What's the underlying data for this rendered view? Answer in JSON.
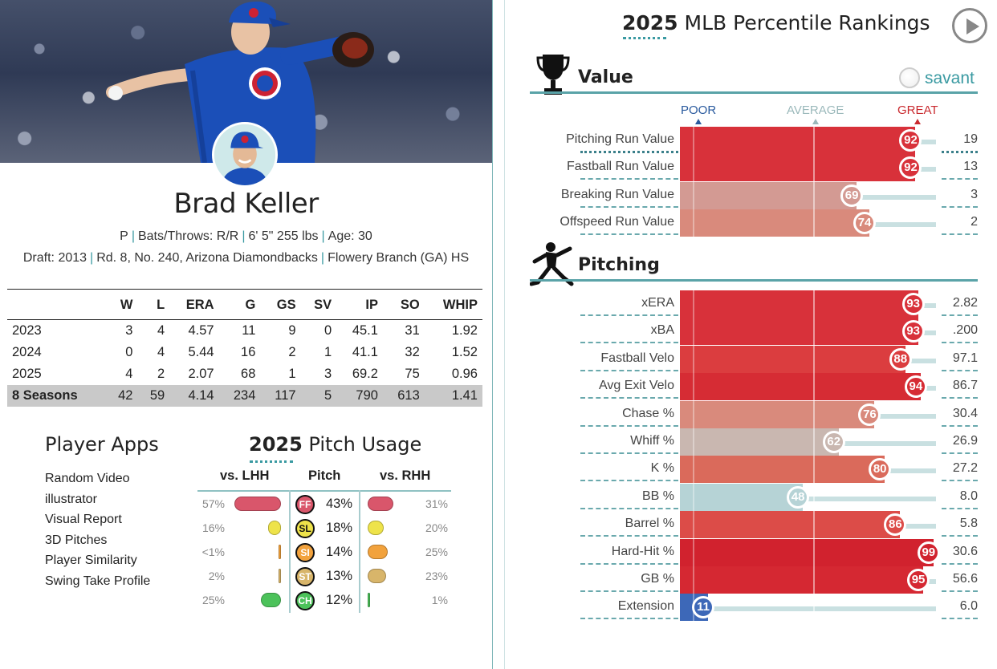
{
  "player": {
    "name": "Brad Keller",
    "bio_line1": [
      "P",
      "Bats/Throws: R/R",
      "6' 5\" 255 lbs",
      "Age: 30"
    ],
    "draft_label": "Draft:",
    "draft_year": "2013",
    "draft_pick": "Rd. 8, No. 240,",
    "draft_team": "Arizona Diamondbacks",
    "school": "Flowery Branch (GA) HS",
    "colors": {
      "cubs_blue": "#1b4fb8",
      "cubs_red": "#cc2233"
    }
  },
  "stats": {
    "headers": [
      "",
      "W",
      "L",
      "ERA",
      "G",
      "GS",
      "SV",
      "IP",
      "SO",
      "WHIP"
    ],
    "rows": [
      [
        "2023",
        "3",
        "4",
        "4.57",
        "11",
        "9",
        "0",
        "45.1",
        "31",
        "1.92"
      ],
      [
        "2024",
        "0",
        "4",
        "5.44",
        "16",
        "2",
        "1",
        "41.1",
        "32",
        "1.52"
      ],
      [
        "2025",
        "4",
        "2",
        "2.07",
        "68",
        "1",
        "3",
        "69.2",
        "75",
        "0.96"
      ]
    ],
    "total": [
      "8 Seasons",
      "42",
      "59",
      "4.14",
      "234",
      "117",
      "5",
      "790",
      "613",
      "1.41"
    ]
  },
  "apps": {
    "title": "Player Apps",
    "items": [
      "Random Video",
      "illustrator",
      "Visual Report",
      "3D Pitches",
      "Player Similarity",
      "Swing Take Profile"
    ]
  },
  "usage": {
    "title_year": "2025",
    "title_rest": " Pitch Usage",
    "col_lhh": "vs. LHH",
    "col_pitch": "Pitch",
    "col_rhh": "vs. RHH",
    "pitches": [
      {
        "code": "FF",
        "usage": "43%",
        "lhh": "57%",
        "rhh": "31%",
        "lhh_v": 57,
        "rhh_v": 31,
        "color": "#d9566b",
        "text": "#fff"
      },
      {
        "code": "SL",
        "usage": "18%",
        "lhh": "16%",
        "rhh": "20%",
        "lhh_v": 16,
        "rhh_v": 20,
        "color": "#eee34a",
        "text": "#111"
      },
      {
        "code": "SI",
        "usage": "14%",
        "lhh": "<1%",
        "rhh": "25%",
        "lhh_v": 0.5,
        "rhh_v": 25,
        "color": "#f2a23c",
        "text": "#fff"
      },
      {
        "code": "ST",
        "usage": "13%",
        "lhh": "2%",
        "rhh": "23%",
        "lhh_v": 2,
        "rhh_v": 23,
        "color": "#d8b56a",
        "text": "#fff"
      },
      {
        "code": "CH",
        "usage": "12%",
        "lhh": "25%",
        "rhh": "1%",
        "lhh_v": 25,
        "rhh_v": 1,
        "color": "#4cc25a",
        "text": "#fff"
      }
    ]
  },
  "rankings": {
    "title_year": "2025",
    "title_rest": " MLB Percentile Rankings",
    "brand": "savant",
    "scale": {
      "poor": "POOR",
      "average": "AVERAGE",
      "great": "GREAT"
    },
    "sections": [
      {
        "name": "Value",
        "metrics": [
          {
            "label": "Pitching Run Value",
            "pct": 92,
            "pct_text": "92",
            "value": "19",
            "color": "#d8313a"
          },
          {
            "label": "Fastball Run Value",
            "pct": 92,
            "pct_text": "92",
            "value": "13",
            "color": "#d8313a"
          },
          {
            "label": "Breaking Run Value",
            "pct": 69,
            "pct_text": "69",
            "value": "3",
            "color": "#d39a93"
          },
          {
            "label": "Offspeed Run Value",
            "pct": 74,
            "pct_text": "74",
            "value": "2",
            "color": "#d98a7c"
          }
        ]
      },
      {
        "name": "Pitching",
        "metrics": [
          {
            "label": "xERA",
            "pct": 93,
            "pct_text": "93",
            "value": "2.82",
            "color": "#d8313a"
          },
          {
            "label": "xBA",
            "pct": 93,
            "pct_text": "93",
            "value": ".200",
            "color": "#d8313a"
          },
          {
            "label": "Fastball Velo",
            "pct": 88,
            "pct_text": "88",
            "value": "97.1",
            "color": "#db3d3f"
          },
          {
            "label": "Avg Exit Velo",
            "pct": 94,
            "pct_text": "94",
            "value": "86.7",
            "color": "#d62c34"
          },
          {
            "label": "Chase %",
            "pct": 76,
            "pct_text": "76",
            "value": "30.4",
            "color": "#d98a7c"
          },
          {
            "label": "Whiff %",
            "pct": 62,
            "pct_text": "62",
            "value": "26.9",
            "color": "#c9b7b0"
          },
          {
            "label": "K %",
            "pct": 80,
            "pct_text": "80",
            "value": "27.2",
            "color": "#da6a5b"
          },
          {
            "label": "BB %",
            "pct": 48,
            "pct_text": "48",
            "value": "8.0",
            "color": "#b6d3d6"
          },
          {
            "label": "Barrel %",
            "pct": 86,
            "pct_text": "86",
            "value": "5.8",
            "color": "#dc4c48"
          },
          {
            "label": "Hard-Hit %",
            "pct": 99,
            "pct_text": "99",
            "value": "30.6",
            "color": "#d1222e"
          },
          {
            "label": "GB %",
            "pct": 95,
            "pct_text": "95",
            "value": "56.6",
            "color": "#d52832"
          },
          {
            "label": "Extension",
            "pct": 11,
            "pct_text": "11",
            "value": "6.0",
            "color": "#3d68b8"
          }
        ]
      }
    ]
  }
}
